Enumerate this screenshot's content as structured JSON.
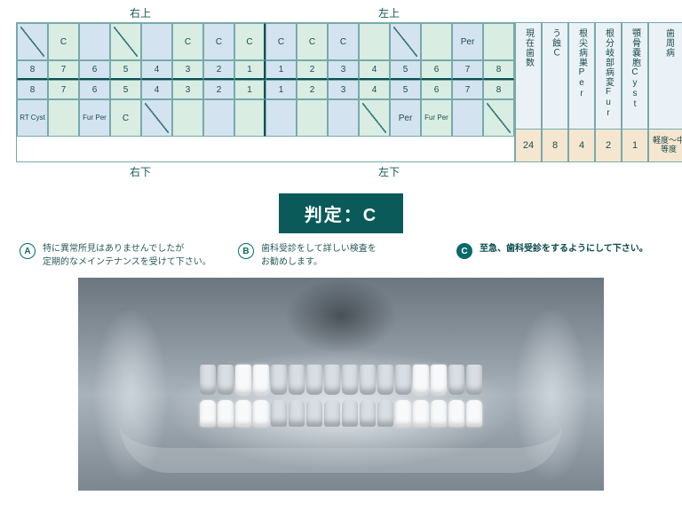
{
  "quadrants": {
    "ur": "右上",
    "ul": "左上",
    "lr": "右下",
    "ll": "左下"
  },
  "teeth_nums": [
    "8",
    "7",
    "6",
    "5",
    "4",
    "3",
    "2",
    "1",
    "1",
    "2",
    "3",
    "4",
    "5",
    "6",
    "7",
    "8"
  ],
  "upper_findings": [
    "/",
    "C",
    "",
    "/",
    "",
    "C",
    "C",
    "C",
    "C",
    "C",
    "C",
    "",
    "/",
    "",
    "Per",
    ""
  ],
  "lower_findings": [
    "RT Cyst",
    "",
    "Fur Per",
    "C",
    "/",
    "",
    "",
    "",
    "",
    "",
    "",
    "/",
    "Per",
    "Fur Per",
    "",
    "/"
  ],
  "summary_cols": [
    {
      "label": "現在歯数",
      "value": "24",
      "wider": false
    },
    {
      "label": "う蝕Ｃ",
      "value": "8",
      "wider": false
    },
    {
      "label": "根尖病巣Per",
      "value": "4",
      "wider": false
    },
    {
      "label": "根分岐部病変Fur",
      "value": "2",
      "wider": false
    },
    {
      "label": "顎骨嚢胞Cyst",
      "value": "1",
      "wider": false
    },
    {
      "label": "歯周病",
      "value": "軽度〜中等度",
      "wider": true
    }
  ],
  "judgement_label": "判定：C",
  "options": [
    {
      "id": "A",
      "text": "特に異常所見はありませんでしたが\n定期的なメインテナンスを受けて下さい。",
      "selected": false
    },
    {
      "id": "B",
      "text": "歯科受診をして詳しい検査を\nお勧めします。",
      "selected": false
    },
    {
      "id": "C",
      "text": "至急、歯科受診をするようにして下さい。",
      "selected": true
    }
  ],
  "colors": {
    "cell_green": "#d9ede3",
    "cell_blue": "#d4e3f0",
    "summary_head": "#eaf2f7",
    "summary_val": "#f5e6d0",
    "primary": "#0a5a5a",
    "border": "#7aa"
  },
  "chart": {
    "type": "dental-chart-table"
  }
}
